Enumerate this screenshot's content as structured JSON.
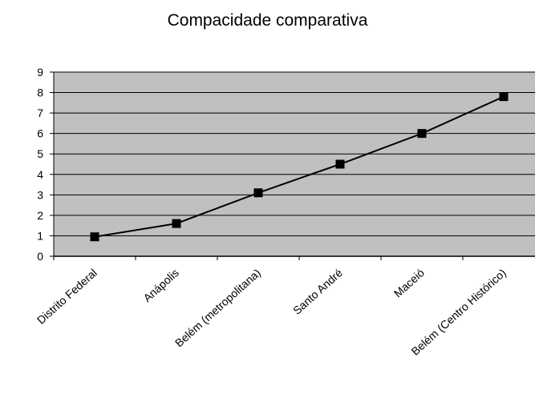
{
  "chart_data": {
    "type": "line",
    "title": "Compacidade comparativa",
    "categories": [
      "Distrito Federal",
      "Anápolis",
      "Belém (metropolitana)",
      "Santo André",
      "Maceió",
      "Belém (Centro Histórico)"
    ],
    "series": [
      {
        "values": [
          0.95,
          1.6,
          3.1,
          4.5,
          6.0,
          7.8
        ]
      }
    ],
    "y_ticks": [
      "0",
      "1",
      "2",
      "3",
      "4",
      "5",
      "6",
      "7",
      "8",
      "9"
    ],
    "ylim": [
      0,
      9
    ],
    "grid": true,
    "legend": "none",
    "colors": {
      "plot_background": "#c0c0c0",
      "gridline": "#000000",
      "line": "#000000",
      "marker": "#000000"
    }
  }
}
